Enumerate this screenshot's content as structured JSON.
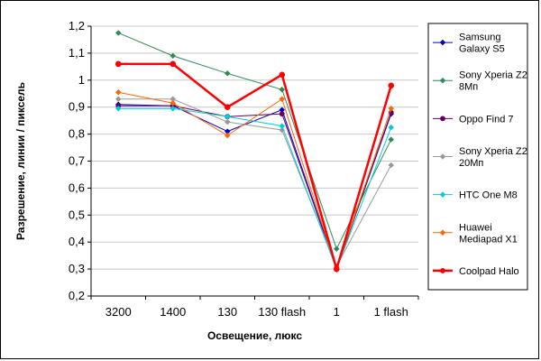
{
  "chart_data": {
    "type": "line",
    "title": "",
    "xlabel": "Освещение, люкс",
    "ylabel": "Разрешение, линии / пиксель",
    "categories": [
      "3200",
      "1400",
      "130",
      "130 flash",
      "1",
      "1 flash"
    ],
    "ylim": [
      0.2,
      1.2
    ],
    "yticks": [
      "0,2",
      "0,3",
      "0,4",
      "0,5",
      "0,6",
      "0,7",
      "0,8",
      "0,9",
      "1",
      "1,1",
      "1,2"
    ],
    "grid": "horizontal",
    "legend": "right",
    "series": [
      {
        "name": "Samsung Galaxy S5",
        "legend_lines": [
          "Samsung",
          "Galaxy S5"
        ],
        "color": "#0000CC",
        "marker": "diamond",
        "width": 1,
        "values": [
          0.91,
          0.905,
          0.81,
          0.89,
          0.3,
          0.875
        ]
      },
      {
        "name": "Sony Xperia Z2 8Mп",
        "legend_lines": [
          "Sony Xperia Z2",
          "8Mп"
        ],
        "color": "#2E8B57",
        "marker": "diamond",
        "width": 1,
        "values": [
          1.175,
          1.09,
          1.025,
          0.965,
          0.375,
          0.78
        ]
      },
      {
        "name": "Oppo Find 7",
        "legend_lines": [
          "Oppo Find 7"
        ],
        "color": "#660066",
        "marker": "circle",
        "width": 1,
        "values": [
          0.905,
          0.905,
          0.865,
          0.875,
          0.3,
          0.88
        ]
      },
      {
        "name": "Sony Xperia Z2 20Mп",
        "legend_lines": [
          "Sony Xperia Z2",
          "20Mп"
        ],
        "color": "#999999",
        "marker": "diamond",
        "width": 1,
        "values": [
          0.93,
          0.93,
          0.845,
          0.815,
          0.31,
          0.685
        ]
      },
      {
        "name": "HTC One M8",
        "legend_lines": [
          "HTC One M8"
        ],
        "color": "#00CCDD",
        "marker": "diamond",
        "width": 1,
        "values": [
          0.895,
          0.895,
          0.865,
          0.83,
          0.3,
          0.825
        ]
      },
      {
        "name": "Huawei Mediapad X1",
        "legend_lines": [
          "Huawei",
          "Mediapad X1"
        ],
        "color": "#FF6600",
        "marker": "diamond",
        "width": 1,
        "values": [
          0.955,
          0.915,
          0.795,
          0.93,
          0.3,
          0.895
        ]
      },
      {
        "name": "Coolpad Halo",
        "legend_lines": [
          "Coolpad Halo"
        ],
        "color": "#FF0000",
        "marker": "circle",
        "width": 2.5,
        "values": [
          1.06,
          1.06,
          0.9,
          1.02,
          0.3,
          0.98
        ]
      }
    ]
  }
}
